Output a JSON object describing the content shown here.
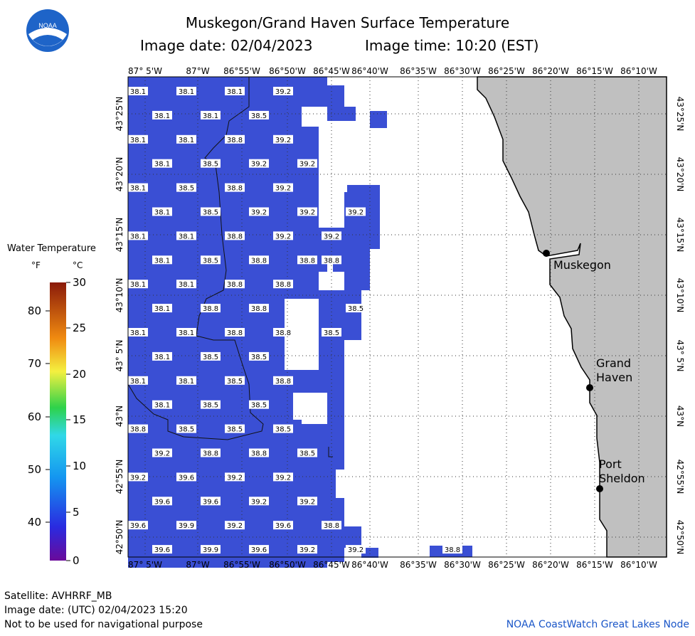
{
  "header": {
    "title": "Muskegon/Grand Haven Surface Temperature",
    "image_date": "Image date: 02/04/2023",
    "image_time": "Image time: 10:20 (EST)",
    "logo_text": "NOAA"
  },
  "map": {
    "lon_labels": [
      "87° 5'W",
      "87°W",
      "86°55'W",
      "86°50'W",
      "86°45'W",
      "86°40'W",
      "86°35'W",
      "86°30'W",
      "86°25'W",
      "86°20'W",
      "86°15'W",
      "86°10'W"
    ],
    "lat_labels": [
      "43°25'N",
      "43°20'N",
      "43°15'N",
      "43°10'N",
      "43° 5'N",
      "43°N",
      "42°55'N",
      "42°50'N"
    ],
    "colors": {
      "water": "#3a4fd4",
      "land": "#c0c0c0",
      "shore": "#000000",
      "label_bg": "#ffffff"
    },
    "temperature_rows": [
      [
        "38.1",
        "38.1",
        "38.1",
        "39.2"
      ],
      [
        "38.1",
        "38.1",
        "38.5"
      ],
      [
        "38.1",
        "38.1",
        "38.8",
        "39.2"
      ],
      [
        "38.1",
        "38.5",
        "39.2",
        "39.2"
      ],
      [
        "38.1",
        "38.5",
        "38.8",
        "39.2"
      ],
      [
        "38.1",
        "38.5",
        "39.2",
        "39.2",
        "39.2"
      ],
      [
        "38.1",
        "38.1",
        "38.8",
        "39.2",
        "39.2"
      ],
      [
        "38.1",
        "38.5",
        "38.8",
        "38.8",
        "38.8"
      ],
      [
        "38.1",
        "38.1",
        "38.8",
        "38.8"
      ],
      [
        "38.1",
        "38.8",
        "38.8",
        "38.5"
      ],
      [
        "38.1",
        "38.1",
        "38.8",
        "38.8",
        "38.5"
      ],
      [
        "38.1",
        "38.5",
        "38.5"
      ],
      [
        "38.1",
        "38.1",
        "38.5",
        "38.8"
      ],
      [
        "38.1",
        "38.5",
        "38.5"
      ],
      [
        "38.8",
        "38.5",
        "38.5",
        "38.5"
      ],
      [
        "39.2",
        "38.8",
        "38.8",
        "38.5"
      ],
      [
        "39.2",
        "39.6",
        "39.2",
        "39.2"
      ],
      [
        "39.6",
        "39.6",
        "39.2",
        "39.2"
      ],
      [
        "39.6",
        "39.9",
        "39.2",
        "39.6",
        "38.8"
      ],
      [
        "39.6",
        "39.9",
        "39.6",
        "39.2",
        "39.2",
        "38.8"
      ]
    ],
    "cities": [
      {
        "name": "Muskegon",
        "lon": -86.3405,
        "lat": 43.2342
      },
      {
        "name": "Grand Haven",
        "lon": -86.2637,
        "lat": 43.0631
      },
      {
        "name": "Port Sheldon",
        "lon": -86.2416,
        "lat": 42.9317
      }
    ]
  },
  "legend": {
    "title": "Water Temperature",
    "unit_f": "°F",
    "unit_c": "°C",
    "f_ticks": [
      "80",
      "70",
      "60",
      "50",
      "40"
    ],
    "c_ticks": [
      "30",
      "25",
      "20",
      "15",
      "10",
      "5",
      "0"
    ]
  },
  "footer": {
    "satellite": "Satellite: AVHRRF_MB",
    "utc_date": "Image date: (UTC) 02/04/2023  15:20",
    "disclaimer": "Not to be used for navigational purpose",
    "credit": "NOAA CoastWatch Great Lakes Node"
  }
}
